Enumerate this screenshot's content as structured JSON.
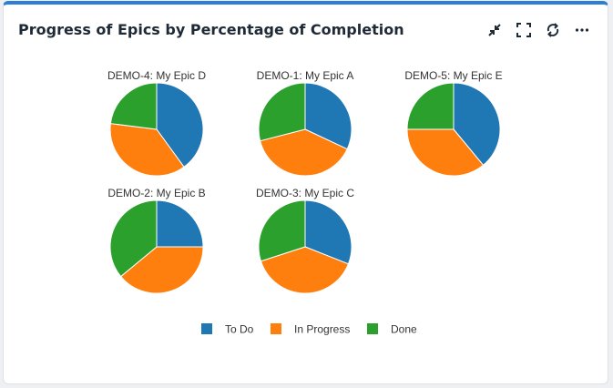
{
  "header": {
    "title": "Progress of Epics by Percentage of Completion"
  },
  "toolbar": {
    "icons": [
      "minimize-icon",
      "fullscreen-icon",
      "refresh-icon",
      "more-icon"
    ]
  },
  "colors": {
    "todo": "#1f77b4",
    "in_progress": "#ff7f0e",
    "done": "#2ca02c",
    "accent": "#2d7fd3"
  },
  "chart_data": {
    "type": "pie",
    "legend_position": "bottom",
    "legend": [
      "To Do",
      "In Progress",
      "Done"
    ],
    "pies": [
      {
        "title": "DEMO-4: My Epic D",
        "values": [
          40,
          37,
          23
        ]
      },
      {
        "title": "DEMO-1: My Epic A",
        "values": [
          32,
          39,
          29
        ]
      },
      {
        "title": "DEMO-5: My Epic E",
        "values": [
          39,
          36,
          25
        ]
      },
      {
        "title": "DEMO-2: My Epic B",
        "values": [
          25,
          39,
          36
        ]
      },
      {
        "title": "DEMO-3: My Epic C",
        "values": [
          31,
          39,
          30
        ]
      }
    ]
  }
}
